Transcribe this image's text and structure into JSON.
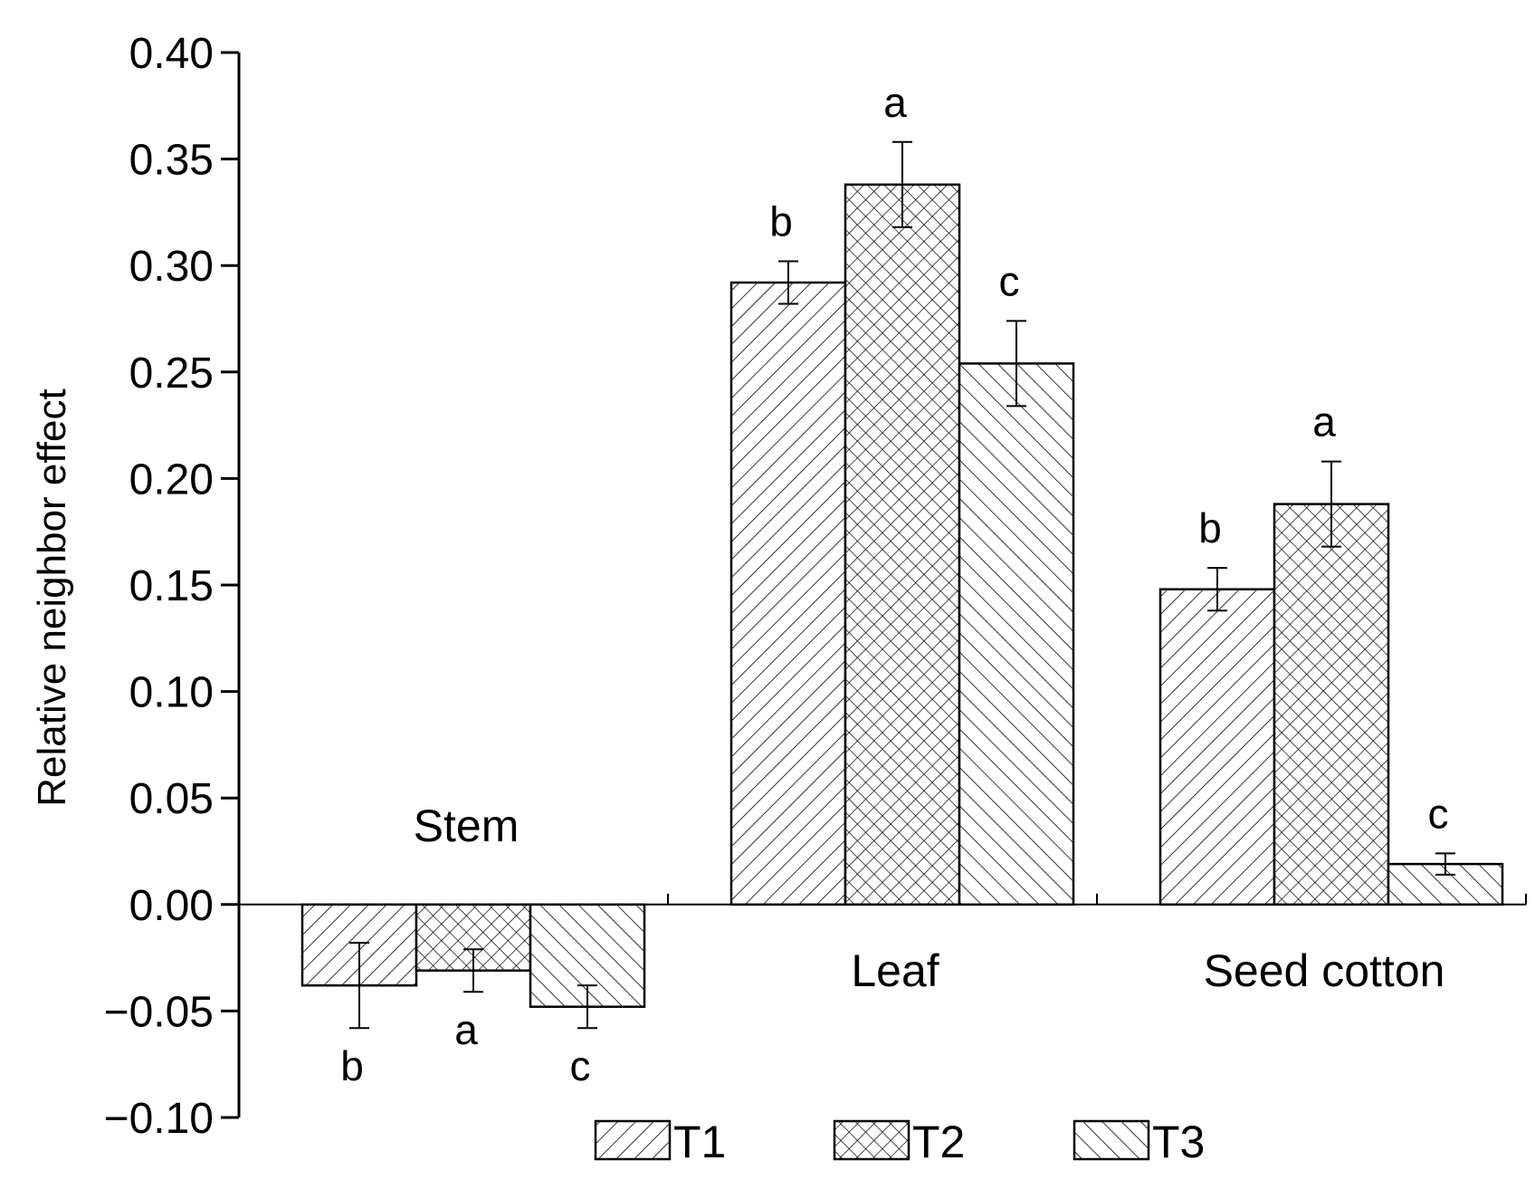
{
  "chart_data": {
    "type": "bar",
    "title": "",
    "xlabel": "",
    "ylabel": "Relative neighbor effect",
    "ylim": [
      -0.1,
      0.4
    ],
    "yticks": [
      "0.40",
      "0.35",
      "0.30",
      "0.25",
      "0.20",
      "0.15",
      "0.10",
      "0.05",
      "0.00",
      "−0.05",
      "−0.10"
    ],
    "ytick_values": [
      0.4,
      0.35,
      0.3,
      0.25,
      0.2,
      0.15,
      0.1,
      0.05,
      0.0,
      -0.05,
      -0.1
    ],
    "categories": [
      "Stem",
      "Leaf",
      "Seed cotton"
    ],
    "series": [
      {
        "name": "T1",
        "pattern": "diagonal-forward",
        "values": [
          -0.038,
          0.292,
          0.148
        ],
        "errors": [
          0.02,
          0.01,
          0.01
        ],
        "letters": [
          "b",
          "b",
          "b"
        ]
      },
      {
        "name": "T2",
        "pattern": "crosshatch",
        "values": [
          -0.031,
          0.338,
          0.188
        ],
        "errors": [
          0.01,
          0.02,
          0.02
        ],
        "letters": [
          "a",
          "a",
          "a"
        ]
      },
      {
        "name": "T3",
        "pattern": "diagonal-backward",
        "values": [
          -0.048,
          0.254,
          0.019
        ],
        "errors": [
          0.01,
          0.02,
          0.005
        ],
        "letters": [
          "c",
          "c",
          "c"
        ]
      }
    ],
    "legend": {
      "placement": "bottom-center"
    },
    "grid": false,
    "colors": {
      "bar_fill": "#ffffff",
      "stroke": "#000000"
    }
  }
}
